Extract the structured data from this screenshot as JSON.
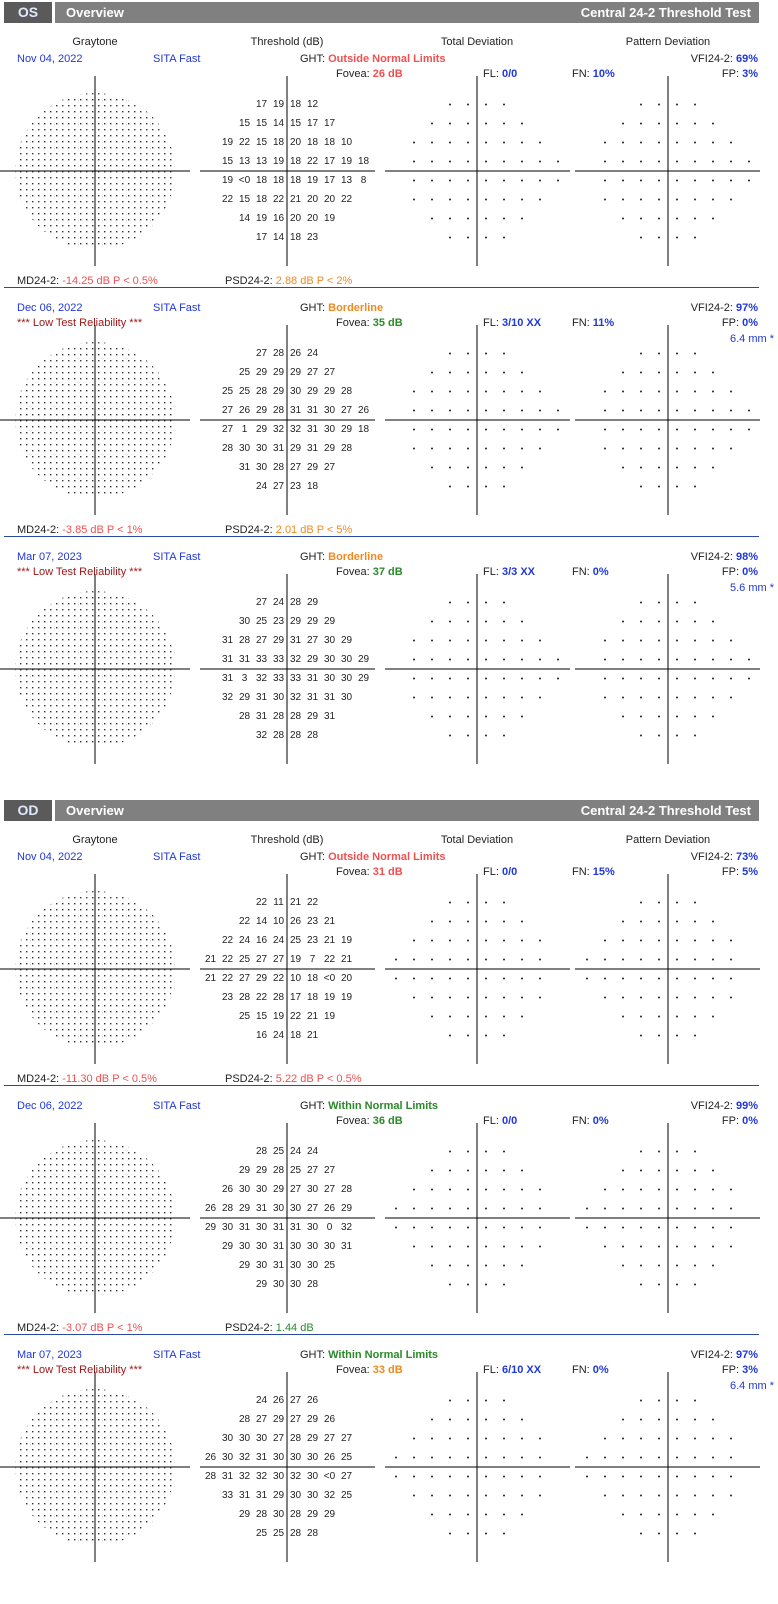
{
  "sections": [
    {
      "eye": "OS",
      "title": "Overview",
      "test_name": "Central 24-2 Threshold Test",
      "column_heads": [
        "Graytone",
        "Threshold (dB)",
        "Total Deviation",
        "Pattern Deviation"
      ],
      "tests": [
        {
          "date": "Nov 04, 2022",
          "strategy": "SITA Fast",
          "ght_label": "GHT:",
          "ght": "Outside Normal Limits",
          "ght_color": "#f05050",
          "fovea_label": "Fovea:",
          "fovea": "26 dB",
          "fovea_color": "#f05050",
          "fl_label": "FL:",
          "fl": "0/0",
          "fn_label": "FN:",
          "fn": "10%",
          "vfi_label": "VFI24-2:",
          "vfi": "69%",
          "fp_label": "FP:",
          "fp": "3%",
          "md_label": "MD24-2:",
          "md": "-14.25 dB P < 0.5%",
          "md_color": "#f05050",
          "psd_label": "PSD24-2:",
          "psd": "2.88 dB P < 2%",
          "psd_color": "#f08a20",
          "rows": [
            [
              17,
              19,
              18,
              12
            ],
            [
              15,
              15,
              14,
              15,
              17,
              17
            ],
            [
              19,
              22,
              15,
              18,
              20,
              18,
              18,
              10
            ],
            [
              15,
              13,
              13,
              19,
              18,
              22,
              17,
              19,
              18
            ],
            [
              19,
              "<0",
              18,
              18,
              18,
              19,
              17,
              13,
              8
            ],
            [
              22,
              15,
              18,
              22,
              21,
              20,
              20,
              22
            ],
            [
              14,
              19,
              16,
              20,
              20,
              19
            ],
            [
              17,
              14,
              18,
              23
            ]
          ]
        },
        {
          "date": "Dec 06, 2022",
          "strategy": "SITA Fast",
          "reliability": "*** Low Test Reliability ***",
          "ght_label": "GHT:",
          "ght": "Borderline",
          "ght_color": "#f08a20",
          "fovea_label": "Fovea:",
          "fovea": "35 dB",
          "fovea_color": "#2a8a2a",
          "fl_label": "FL:",
          "fl": "3/10 XX",
          "fn_label": "FN:",
          "fn": "11%",
          "vfi_label": "VFI24-2:",
          "vfi": "97%",
          "fp_label": "FP:",
          "fp": "0%",
          "pupil": "6.4 mm *",
          "md_label": "MD24-2:",
          "md": "-3.85 dB P < 1%",
          "md_color": "#f05050",
          "psd_label": "PSD24-2:",
          "psd": "2.01 dB P < 5%",
          "psd_color": "#f08a20",
          "rows": [
            [
              27,
              28,
              26,
              24
            ],
            [
              25,
              29,
              29,
              29,
              27,
              27
            ],
            [
              25,
              25,
              28,
              29,
              30,
              29,
              29,
              28
            ],
            [
              27,
              26,
              29,
              28,
              31,
              31,
              30,
              27,
              26
            ],
            [
              27,
              1,
              29,
              32,
              32,
              31,
              30,
              29,
              18
            ],
            [
              28,
              30,
              30,
              31,
              29,
              31,
              29,
              28
            ],
            [
              31,
              30,
              28,
              27,
              29,
              27
            ],
            [
              24,
              27,
              23,
              18
            ]
          ]
        },
        {
          "date": "Mar 07, 2023",
          "strategy": "SITA Fast",
          "reliability": "*** Low Test Reliability ***",
          "ght_label": "GHT:",
          "ght": "Borderline",
          "ght_color": "#f08a20",
          "fovea_label": "Fovea:",
          "fovea": "37 dB",
          "fovea_color": "#2a8a2a",
          "fl_label": "FL:",
          "fl": "3/3 XX",
          "fn_label": "FN:",
          "fn": "0%",
          "vfi_label": "VFI24-2:",
          "vfi": "98%",
          "fp_label": "FP:",
          "fp": "0%",
          "pupil": "5.6 mm *",
          "rows": [
            [
              27,
              24,
              28,
              29
            ],
            [
              30,
              25,
              23,
              29,
              29,
              29
            ],
            [
              31,
              28,
              27,
              29,
              31,
              27,
              30,
              29
            ],
            [
              31,
              31,
              33,
              33,
              32,
              29,
              30,
              30,
              29
            ],
            [
              31,
              3,
              32,
              33,
              33,
              31,
              30,
              30,
              29
            ],
            [
              32,
              29,
              31,
              30,
              32,
              31,
              31,
              30
            ],
            [
              28,
              31,
              28,
              28,
              29,
              31
            ],
            [
              32,
              28,
              28,
              28
            ]
          ]
        }
      ]
    },
    {
      "eye": "OD",
      "title": "Overview",
      "test_name": "Central 24-2 Threshold Test",
      "column_heads": [
        "Graytone",
        "Threshold (dB)",
        "Total Deviation",
        "Pattern Deviation"
      ],
      "tests": [
        {
          "date": "Nov 04, 2022",
          "strategy": "SITA Fast",
          "ght_label": "GHT:",
          "ght": "Outside Normal Limits",
          "ght_color": "#f05050",
          "fovea_label": "Fovea:",
          "fovea": "31 dB",
          "fovea_color": "#f05050",
          "fl_label": "FL:",
          "fl": "0/0",
          "fn_label": "FN:",
          "fn": "15%",
          "vfi_label": "VFI24-2:",
          "vfi": "73%",
          "fp_label": "FP:",
          "fp": "5%",
          "md_label": "MD24-2:",
          "md": "-11.30 dB P < 0.5%",
          "md_color": "#f05050",
          "psd_label": "PSD24-2:",
          "psd": "5.22 dB P < 0.5%",
          "psd_color": "#f05050",
          "rows": [
            [
              22,
              11,
              21,
              22
            ],
            [
              22,
              14,
              10,
              26,
              23,
              21
            ],
            [
              22,
              24,
              16,
              24,
              25,
              23,
              21,
              19
            ],
            [
              21,
              22,
              25,
              27,
              27,
              19,
              7,
              22,
              21
            ],
            [
              21,
              22,
              27,
              29,
              22,
              10,
              18,
              "<0",
              20
            ],
            [
              23,
              28,
              22,
              28,
              17,
              18,
              19,
              19
            ],
            [
              25,
              15,
              19,
              22,
              21,
              19
            ],
            [
              16,
              24,
              18,
              21
            ]
          ]
        },
        {
          "date": "Dec 06, 2022",
          "strategy": "SITA Fast",
          "ght_label": "GHT:",
          "ght": "Within Normal Limits",
          "ght_color": "#2a8a2a",
          "fovea_label": "Fovea:",
          "fovea": "36 dB",
          "fovea_color": "#2a8a2a",
          "fl_label": "FL:",
          "fl": "0/0",
          "fn_label": "FN:",
          "fn": "0%",
          "vfi_label": "VFI24-2:",
          "vfi": "99%",
          "fp_label": "FP:",
          "fp": "0%",
          "md_label": "MD24-2:",
          "md": "-3.07 dB P < 1%",
          "md_color": "#f05050",
          "psd_label": "PSD24-2:",
          "psd": "1.44 dB",
          "psd_color": "#2a8a2a",
          "rows": [
            [
              28,
              25,
              24,
              24
            ],
            [
              29,
              29,
              28,
              25,
              27,
              27
            ],
            [
              26,
              30,
              30,
              29,
              27,
              30,
              27,
              28
            ],
            [
              26,
              28,
              29,
              31,
              30,
              30,
              27,
              26,
              29
            ],
            [
              29,
              30,
              31,
              30,
              31,
              31,
              30,
              0,
              32
            ],
            [
              29,
              30,
              30,
              31,
              30,
              30,
              30,
              31
            ],
            [
              29,
              30,
              31,
              30,
              30,
              25
            ],
            [
              29,
              30,
              30,
              28
            ]
          ]
        },
        {
          "date": "Mar 07, 2023",
          "strategy": "SITA Fast",
          "reliability": "*** Low Test Reliability ***",
          "ght_label": "GHT:",
          "ght": "Within Normal Limits",
          "ght_color": "#2a8a2a",
          "fovea_label": "Fovea:",
          "fovea": "33 dB",
          "fovea_color": "#f08a20",
          "fl_label": "FL:",
          "fl": "6/10 XX",
          "fn_label": "FN:",
          "fn": "0%",
          "vfi_label": "VFI24-2:",
          "vfi": "97%",
          "fp_label": "FP:",
          "fp": "3%",
          "pupil": "6.4 mm *",
          "rows": [
            [
              24,
              26,
              27,
              26
            ],
            [
              28,
              27,
              29,
              27,
              29,
              26
            ],
            [
              30,
              30,
              30,
              27,
              28,
              29,
              27,
              27
            ],
            [
              26,
              30,
              32,
              31,
              30,
              30,
              30,
              26,
              25
            ],
            [
              28,
              31,
              32,
              32,
              30,
              32,
              30,
              "<0",
              27
            ],
            [
              33,
              31,
              31,
              29,
              30,
              30,
              32,
              25
            ],
            [
              29,
              28,
              30,
              28,
              29,
              29
            ],
            [
              25,
              25,
              28,
              28
            ]
          ]
        }
      ]
    }
  ]
}
